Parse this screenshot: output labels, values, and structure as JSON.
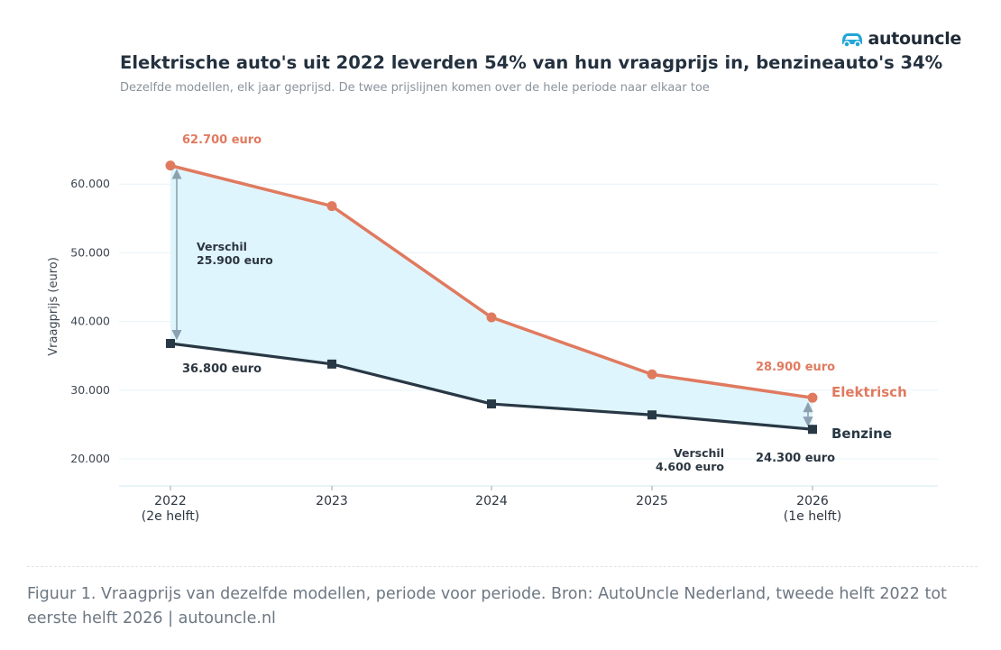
{
  "brand": {
    "name": "autouncle",
    "icon": "car-icon",
    "color": "#22a6d8"
  },
  "title": "Elektrische auto's uit 2022 leverden 54% van hun vraagprijs in, benzineauto's 34%",
  "subtitle": "Dezelfde modellen, elk jaar geprijsd. De twee prijslijnen komen over de hele periode naar elkaar toe",
  "caption": "Figuur 1. Vraagprijs van dezelfde modellen, periode voor periode. Bron: AutoUncle Nederland, tweede helft 2022 tot eerste helft 2026 | autouncle.nl",
  "chart_data": {
    "type": "line",
    "categories": [
      "2022",
      "2023",
      "2024",
      "2025",
      "2026"
    ],
    "category_sublabels": [
      "(2e helft)",
      "",
      "",
      "",
      "(1e helft)"
    ],
    "ylabel": "Vraagprijs (euro)",
    "ylim": [
      16000,
      65000
    ],
    "yticks": [
      20000,
      30000,
      40000,
      50000,
      60000
    ],
    "ytick_labels": [
      "20.000",
      "30.000",
      "40.000",
      "50.000",
      "60.000"
    ],
    "grid": true,
    "series": [
      {
        "name": "Elektrisch",
        "values": [
          62700,
          56800,
          40600,
          32300,
          28900
        ],
        "color": "#e07a5f",
        "marker": "circle"
      },
      {
        "name": "Benzine",
        "values": [
          36800,
          33800,
          28000,
          26400,
          24300
        ],
        "color": "#283845",
        "marker": "square"
      }
    ],
    "fill_color": "#dff5fd",
    "annotations": {
      "elec_start": "62.700 euro",
      "benz_start": "36.800 euro",
      "elec_end": "28.900 euro",
      "benz_end": "24.300 euro",
      "diff_start_1": "Verschil",
      "diff_start_2": "25.900 euro",
      "diff_end_1": "Verschil",
      "diff_end_2": "4.600 euro"
    }
  }
}
